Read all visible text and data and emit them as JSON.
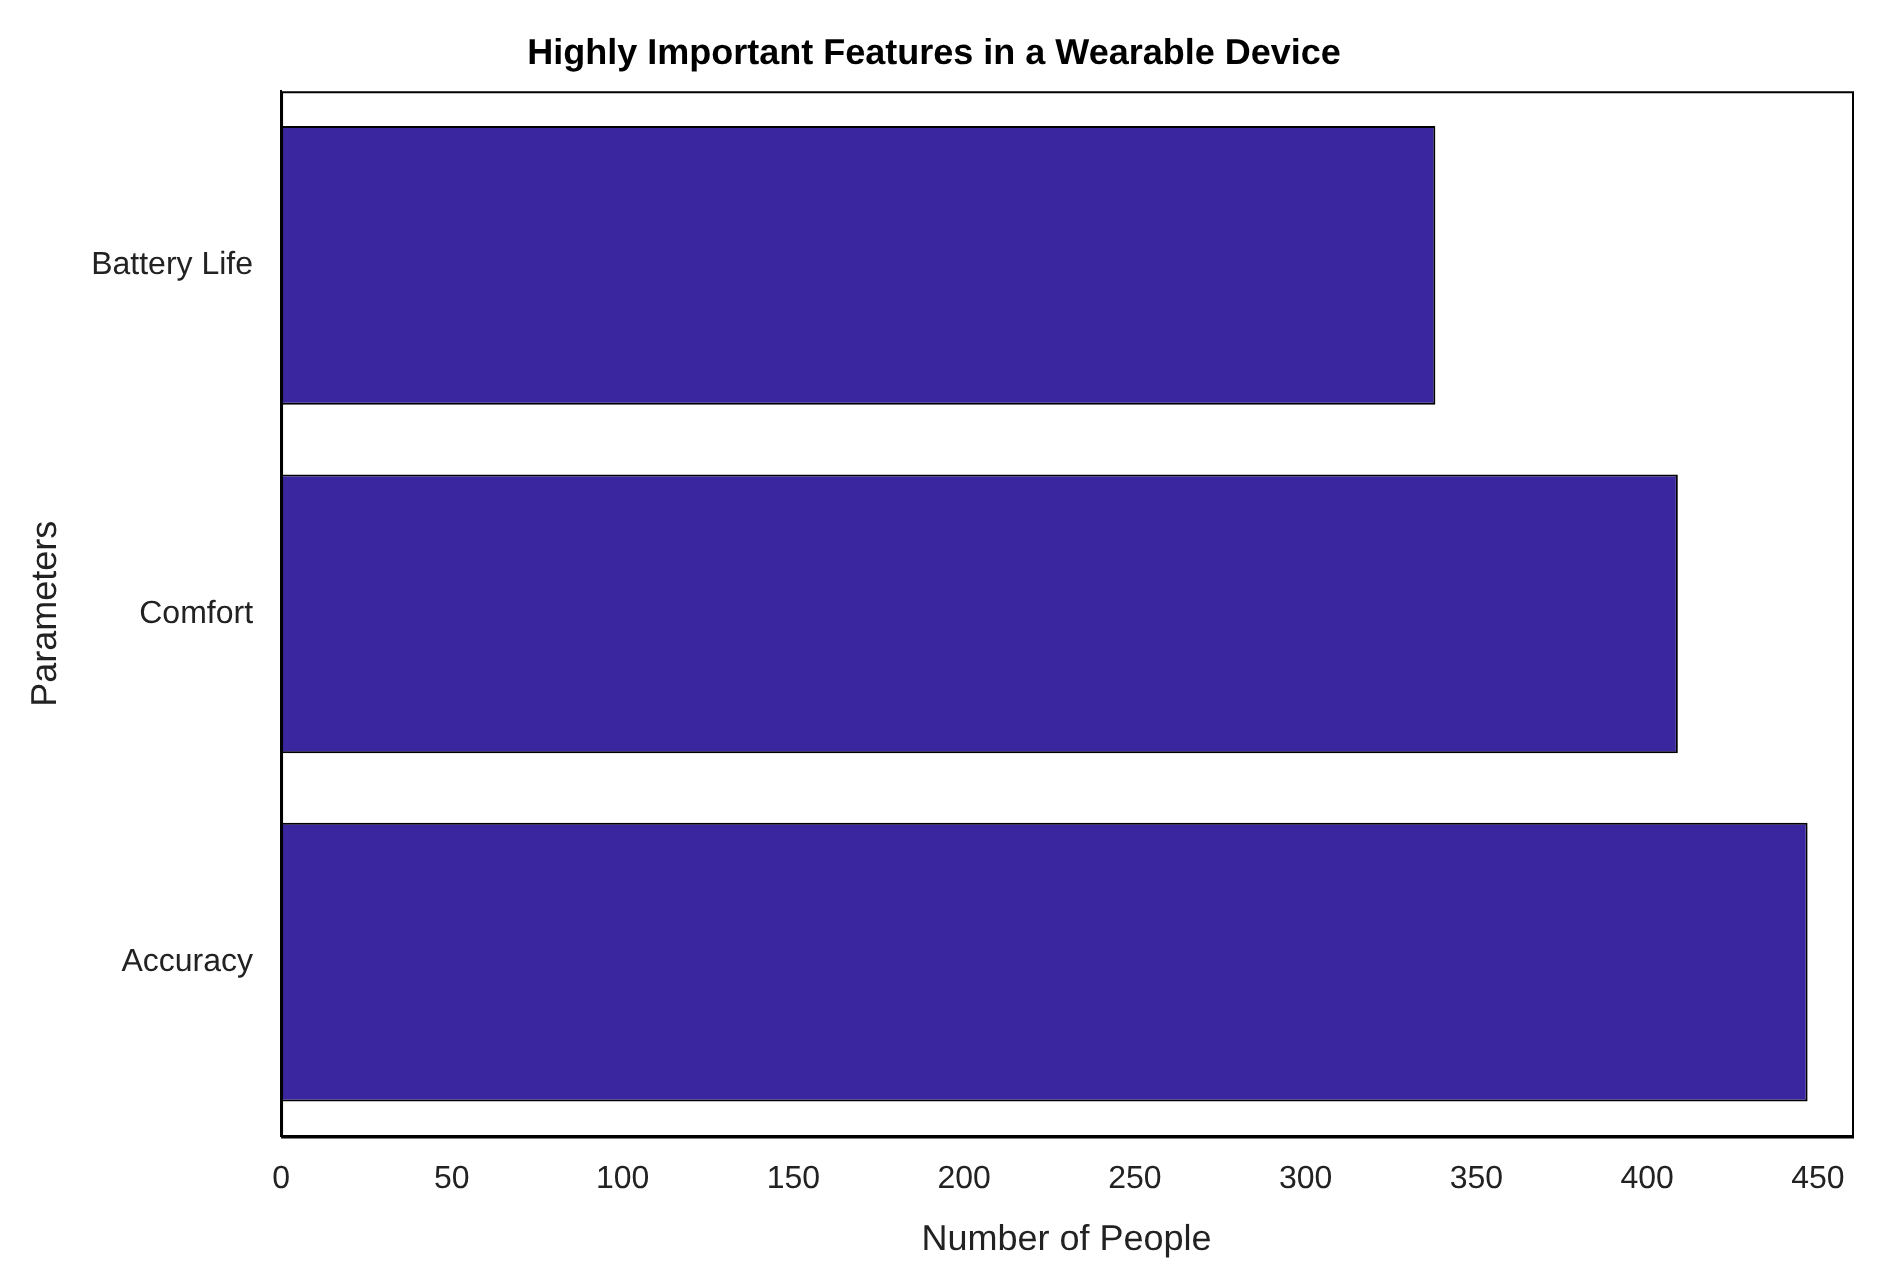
{
  "chart_data": {
    "type": "bar",
    "orientation": "horizontal",
    "title": "Highly Important Features in a Wearable Device",
    "xlabel": "Number of People",
    "ylabel": "Parameters",
    "categories": [
      "Battery Life",
      "Comfort",
      "Accuracy"
    ],
    "values": [
      338,
      409,
      447
    ],
    "color": "#3a27a0",
    "xlim": [
      0,
      460
    ],
    "xticks": [
      0,
      50,
      100,
      150,
      200,
      250,
      300,
      350,
      400,
      450
    ],
    "grid": false,
    "legend": false
  }
}
